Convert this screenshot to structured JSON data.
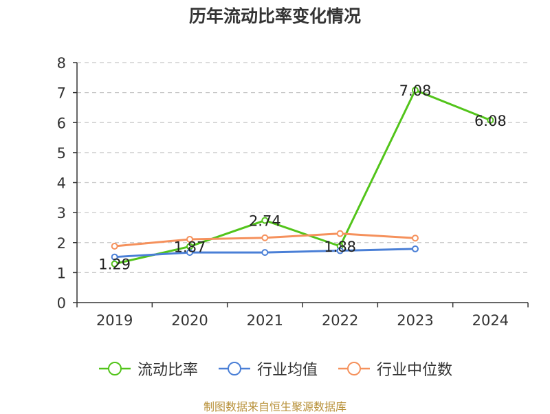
{
  "chart_data": {
    "type": "line",
    "title": "历年流动比率变化情况",
    "xlabel": "",
    "ylabel": "",
    "categories": [
      "2019",
      "2020",
      "2021",
      "2022",
      "2023",
      "2024"
    ],
    "ylim": [
      0,
      8
    ],
    "yticks": [
      0,
      1,
      2,
      3,
      4,
      5,
      6,
      7,
      8
    ],
    "grid": true,
    "legend_position": "bottom",
    "series": [
      {
        "name": "流动比率",
        "color": "#52c41a",
        "values": [
          1.29,
          1.87,
          2.74,
          1.88,
          7.08,
          6.08
        ],
        "labels": [
          "1.29",
          "1.87",
          "2.74",
          "1.88",
          "7.08",
          "6.08"
        ]
      },
      {
        "name": "行业均值",
        "color": "#4a7fd6",
        "values": [
          1.52,
          1.67,
          1.67,
          1.73,
          1.79,
          null
        ]
      },
      {
        "name": "行业中位数",
        "color": "#f5915c",
        "values": [
          1.88,
          2.11,
          2.16,
          2.3,
          2.15,
          null
        ]
      }
    ]
  },
  "footer": {
    "source": "制图数据来自恒生聚源数据库"
  }
}
